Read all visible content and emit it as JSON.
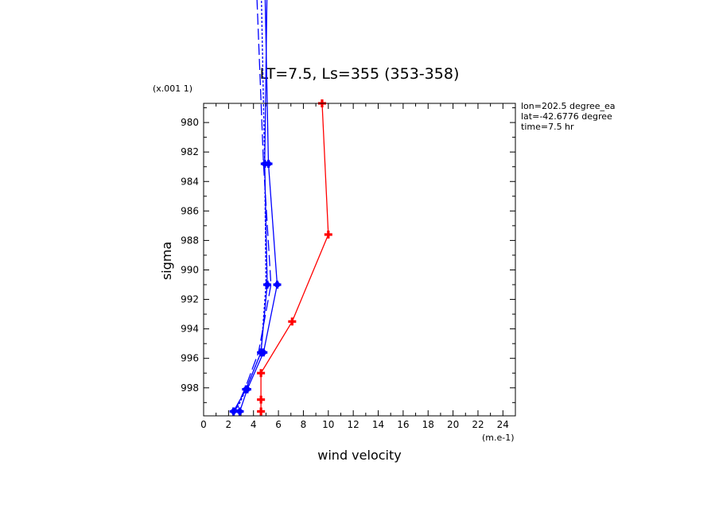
{
  "chart_data": {
    "type": "line",
    "title": "LT=7.5, Ls=355 (353-358)",
    "xlabel": "wind velocity",
    "ylabel": "sigma",
    "x_scale_label": "(m.e-1)",
    "y_scale_label": "(x.001 1)",
    "xlim": [
      0,
      25
    ],
    "ylim": [
      999.9,
      978.7
    ],
    "x_ticks": [
      "0",
      "2",
      "4",
      "6",
      "8",
      "10",
      "12",
      "14",
      "16",
      "18",
      "20",
      "22",
      "24"
    ],
    "y_ticks": [
      "980",
      "982",
      "984",
      "986",
      "988",
      "990",
      "992",
      "994",
      "996",
      "998"
    ],
    "info_lines": [
      "lon=202.5 degree_ea",
      "lat=-42.6776 degree",
      "time=7.5 hr"
    ],
    "series": [
      {
        "style": "solid-markers",
        "color": "#ff0000",
        "x": [
          4.6,
          4.6,
          4.6,
          7.1,
          10.0,
          9.5
        ],
        "y": [
          999.6,
          998.8,
          997.0,
          993.5,
          987.6,
          978.7
        ]
      },
      {
        "style": "solid-markers",
        "color": "#0000ff",
        "x": [
          2.4,
          3.4,
          4.6,
          5.1,
          4.9,
          5.1
        ],
        "y": [
          999.6,
          998.1,
          995.6,
          991.0,
          982.8,
          970.0
        ]
      },
      {
        "style": "solid-markers",
        "color": "#0000ff",
        "x": [
          2.9,
          3.5,
          4.8,
          5.9,
          5.2,
          4.9
        ],
        "y": [
          999.6,
          998.1,
          995.6,
          991.0,
          982.8,
          970.0
        ]
      },
      {
        "style": "dashed",
        "color": "#0000ff",
        "x": [
          2.5,
          3.3,
          4.4,
          5.4,
          4.8,
          4.2
        ],
        "y": [
          999.6,
          998.1,
          995.6,
          991.0,
          982.8,
          970.0
        ]
      },
      {
        "style": "dotted",
        "color": "#0000ff",
        "x": [
          2.6,
          3.4,
          4.6,
          5.0,
          4.9,
          4.6
        ],
        "y": [
          999.6,
          998.1,
          995.6,
          991.0,
          982.8,
          970.0
        ]
      }
    ]
  }
}
